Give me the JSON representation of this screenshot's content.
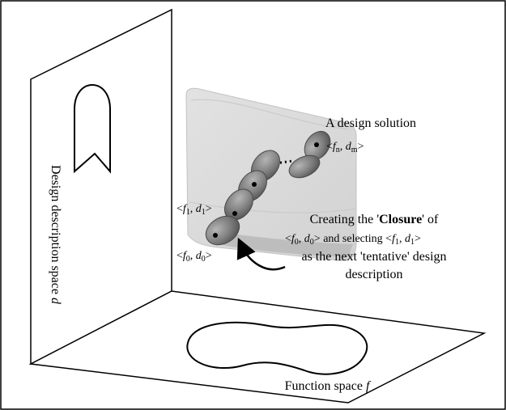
{
  "labels": {
    "design_solution": "A design solution",
    "design_space": "Design description space ",
    "design_space_var": "d",
    "function_space": "Function space ",
    "function_space_var": "f",
    "closure": {
      "line1_pre": "Creating the '",
      "line1_bold": "Closure",
      "line1_post": "' of",
      "line3": "as the next 'tentative' design",
      "line4": "description"
    }
  },
  "pairs": {
    "fn_dm": {
      "f": "f",
      "f_sub": "n",
      "d": "d",
      "d_sub": "m"
    },
    "f1_d1": {
      "f": "f",
      "f_sub": "1",
      "d": "d",
      "d_sub": "1"
    },
    "f0_d0": {
      "f": "f",
      "f_sub": "0",
      "d": "d",
      "d_sub": "0"
    }
  },
  "colors": {
    "surface": "#dcdcdc",
    "blob": "#808080",
    "line": "#000000"
  }
}
